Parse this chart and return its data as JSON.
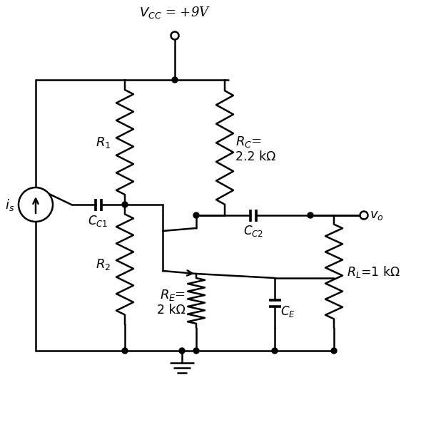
{
  "bg_color": "#ffffff",
  "lc": "#000000",
  "lw": 1.8,
  "vcc_label": "$V_{CC}$ = +9V",
  "r1_label": "$R_1$",
  "r2_label": "$R_2$",
  "rc_label1": "$R_C$=",
  "rc_label2": "2.2 kΩ",
  "re_label1": "$R_E$=",
  "re_label2": "2 kΩ",
  "rl_label": "$R_L$=1 kΩ",
  "cc1_label": "$C_{C1}$",
  "cc2_label": "$C_{C2}$",
  "ce_label": "$C_E$",
  "is_label": "$i_s$",
  "vo_label": "$v_o$"
}
